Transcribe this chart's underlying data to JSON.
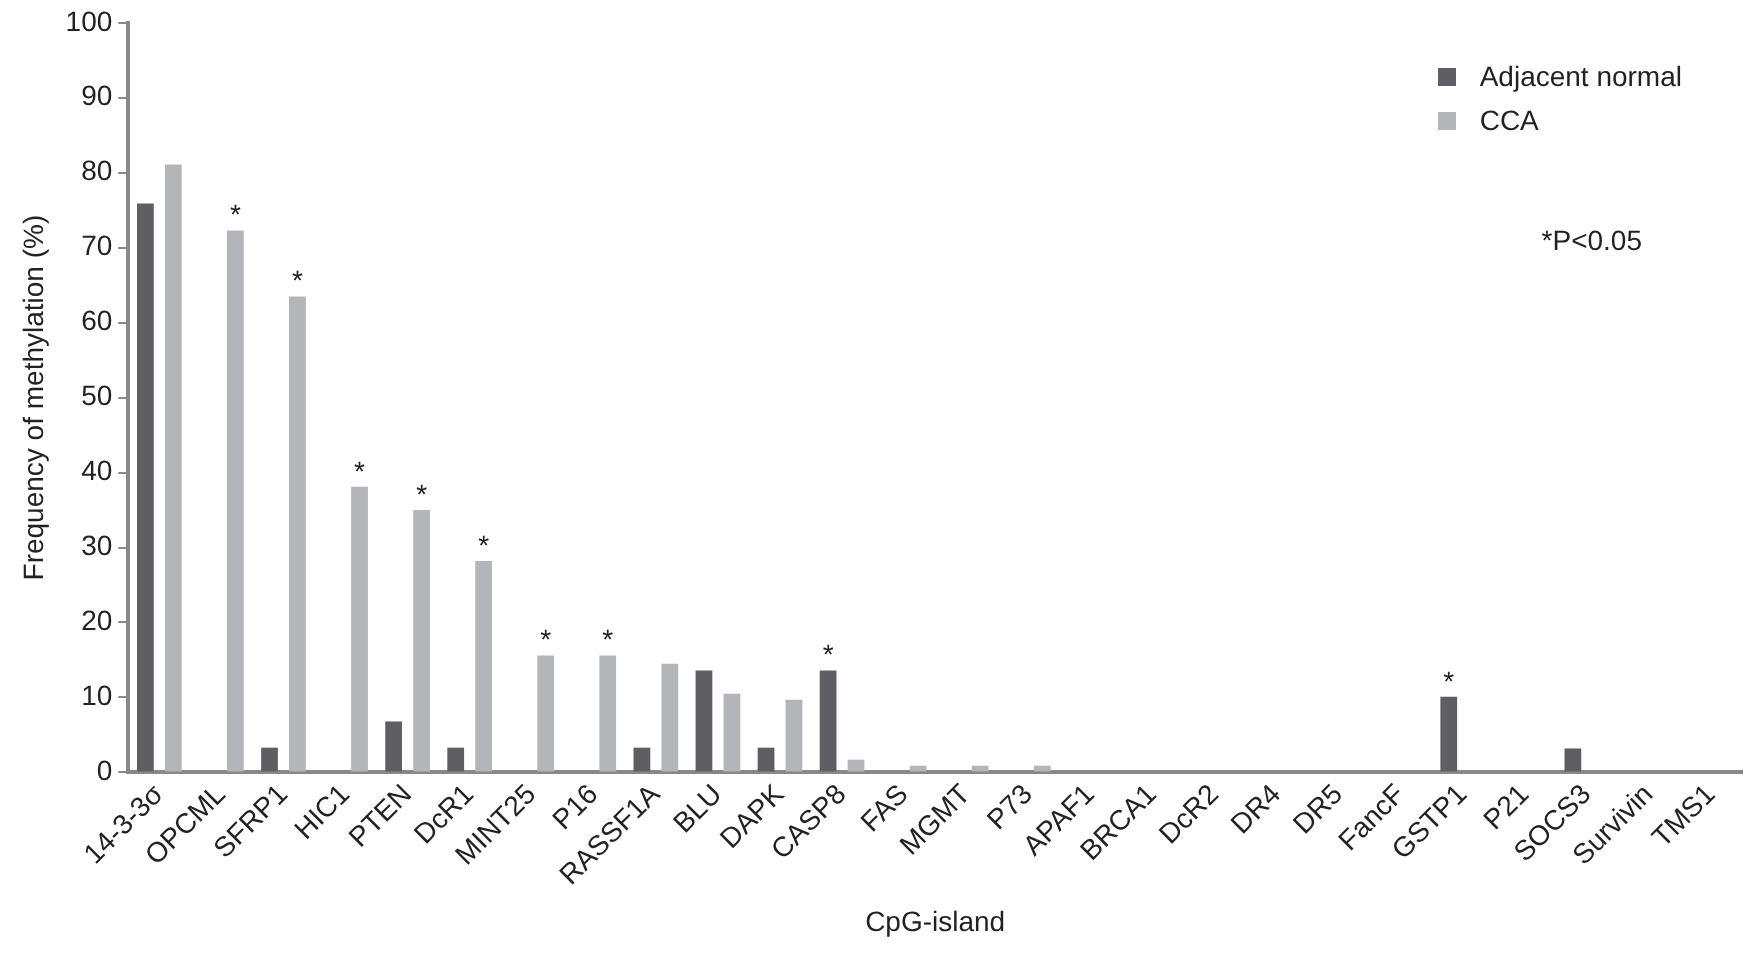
{
  "chart_data": {
    "type": "bar",
    "xlabel": "CpG-island",
    "ylabel": "Frequency of methylation (%)",
    "categories": [
      "14-3-3σ",
      "OPCML",
      "SFRP1",
      "HIC1",
      "PTEN",
      "DcR1",
      "MINT25",
      "P16",
      "RASSF1A",
      "BLU",
      "DAPK",
      "CASP8",
      "FAS",
      "MGMT",
      "P73",
      "APAF1",
      "BRCA1",
      "DcR2",
      "DR4",
      "DR5",
      "FancF",
      "GSTP1",
      "P21",
      "SOCS3",
      "Survivin",
      "TMS1"
    ],
    "series": [
      {
        "name": "Adjacent normal",
        "color": "#5f5f63",
        "values": [
          75.9,
          0,
          3.3,
          0,
          6.8,
          3.3,
          0,
          0,
          3.3,
          13.6,
          3.3,
          13.6,
          0,
          0,
          0,
          0,
          0,
          0,
          0,
          0,
          0,
          10.1,
          0,
          3.2,
          0,
          0
        ]
      },
      {
        "name": "CCA",
        "color": "#b4b5b9",
        "values": [
          81.1,
          72.3,
          63.5,
          38.1,
          35.0,
          28.2,
          15.6,
          15.6,
          14.5,
          10.5,
          9.7,
          1.7,
          0.9,
          0.9,
          0.9,
          0,
          0,
          0,
          0,
          0,
          0,
          0,
          0,
          0,
          0,
          0
        ]
      }
    ],
    "ylim": [
      0,
      100
    ],
    "yticks": [
      0,
      10,
      20,
      30,
      40,
      50,
      60,
      70,
      80,
      90,
      100
    ],
    "grid": false,
    "legend": "top right",
    "annotations": [
      {
        "text": "*",
        "x": "OPCML",
        "y": 72.3
      },
      {
        "text": "*",
        "x": "SFRP1",
        "y": 63.5
      },
      {
        "text": "*",
        "x": "HIC1",
        "y": 38.1
      },
      {
        "text": "*",
        "x": "PTEN",
        "y": 35.0
      },
      {
        "text": "*",
        "x": "DcR1",
        "y": 28.2
      },
      {
        "text": "*",
        "x": "MINT25",
        "y": 15.6
      },
      {
        "text": "*",
        "x": "P16",
        "y": 15.6
      },
      {
        "text": "*",
        "x": "CASP8",
        "y": 13.6
      },
      {
        "text": "*",
        "x": "GSTP1",
        "y": 10.1
      },
      "*P<0.05"
    ]
  }
}
